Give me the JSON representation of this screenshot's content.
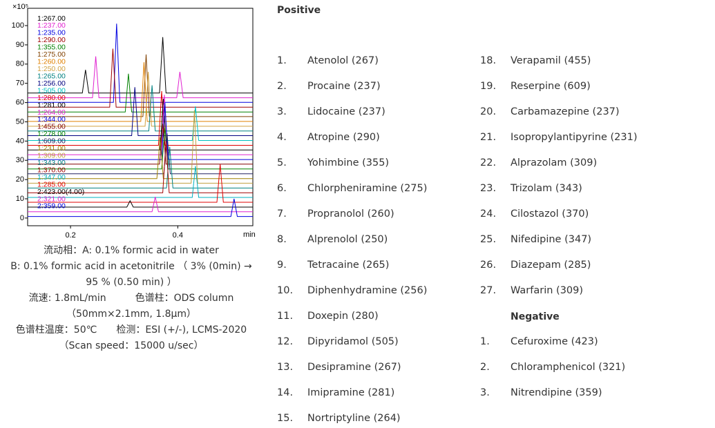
{
  "chart_data": {
    "type": "line",
    "ylabel": "×10⁵",
    "xlabel": "min",
    "xlim": [
      0.12,
      0.54
    ],
    "ylim": [
      -4,
      109
    ],
    "xticks": [
      0.2,
      0.4
    ],
    "yticks": [
      0,
      10,
      20,
      30,
      40,
      50,
      60,
      70,
      80,
      90,
      100
    ],
    "series": [
      {
        "name": "1:267.00",
        "color": "#000000",
        "x": [
          0.12,
          0.222,
          0.228,
          0.234,
          0.366,
          0.372,
          0.378,
          0.54
        ],
        "values": [
          65,
          65,
          77,
          65,
          65,
          94,
          65,
          65
        ]
      },
      {
        "name": "1:237.00",
        "color": "#e020d0",
        "x": [
          0.12,
          0.241,
          0.247,
          0.253,
          0.398,
          0.404,
          0.41,
          0.54
        ],
        "values": [
          62.5,
          62.5,
          84,
          62.5,
          62.5,
          76,
          62.5,
          62.5
        ]
      },
      {
        "name": "1:235.00",
        "color": "#0000e0",
        "x": [
          0.12,
          0.28,
          0.286,
          0.292,
          0.54
        ],
        "values": [
          60.1,
          60.1,
          101,
          60.1,
          60.1
        ]
      },
      {
        "name": "1:290.00",
        "color": "#a00000",
        "x": [
          0.12,
          0.273,
          0.279,
          0.285,
          0.54
        ],
        "values": [
          57.6,
          57.6,
          88,
          57.6,
          57.6
        ]
      },
      {
        "name": "1:355.00",
        "color": "#008000",
        "x": [
          0.12,
          0.302,
          0.308,
          0.314,
          0.54
        ],
        "values": [
          55.1,
          55.1,
          75,
          55.1,
          55.1
        ]
      },
      {
        "name": "1:275.00",
        "color": "#804000",
        "x": [
          0.12,
          0.335,
          0.341,
          0.347,
          0.54
        ],
        "values": [
          52.7,
          52.7,
          85,
          52.7,
          52.7
        ]
      },
      {
        "name": "1:260.00",
        "color": "#e08000",
        "x": [
          0.12,
          0.331,
          0.337,
          0.343,
          0.54
        ],
        "values": [
          50.2,
          50.2,
          81,
          50.2,
          50.2
        ]
      },
      {
        "name": "1:250.00",
        "color": "#d0a040",
        "x": [
          0.12,
          0.339,
          0.345,
          0.351,
          0.54
        ],
        "values": [
          47.7,
          47.7,
          76,
          47.7,
          47.7
        ]
      },
      {
        "name": "1:265.00",
        "color": "#008080",
        "x": [
          0.12,
          0.346,
          0.352,
          0.358,
          0.54
        ],
        "values": [
          45.2,
          45.2,
          69,
          45.2,
          45.2
        ]
      },
      {
        "name": "1:256.00",
        "color": "#000080",
        "x": [
          0.12,
          0.314,
          0.32,
          0.326,
          0.54
        ],
        "values": [
          42.8,
          42.8,
          68,
          42.8,
          42.8
        ]
      },
      {
        "name": "1:505.00",
        "color": "#00c0c0",
        "x": [
          0.12,
          0.427,
          0.433,
          0.439,
          0.54
        ],
        "values": [
          40.3,
          40.3,
          58,
          40.3,
          40.3
        ]
      },
      {
        "name": "1:280.00",
        "color": "#e00000",
        "x": [
          0.12,
          0.364,
          0.37,
          0.376,
          0.54
        ],
        "values": [
          37.8,
          37.8,
          66,
          37.8,
          37.8
        ]
      },
      {
        "name": "1:281.00",
        "color": "#000000",
        "x": [
          0.12,
          0.367,
          0.373,
          0.379,
          0.54
        ],
        "values": [
          35.4,
          35.4,
          62,
          35.4,
          35.4
        ]
      },
      {
        "name": "1:264.00",
        "color": "#e020d0",
        "x": [
          0.12,
          0.369,
          0.375,
          0.381,
          0.54
        ],
        "values": [
          32.9,
          32.9,
          64,
          32.9,
          32.9
        ]
      },
      {
        "name": "1:344.00",
        "color": "#0000e0",
        "x": [
          0.12,
          0.37,
          0.376,
          0.382,
          0.54
        ],
        "values": [
          30.4,
          30.4,
          60,
          30.4,
          30.4
        ]
      },
      {
        "name": "1:455.00",
        "color": "#800000",
        "x": [
          0.12,
          0.366,
          0.372,
          0.378,
          0.54
        ],
        "values": [
          28,
          28,
          49,
          28,
          28
        ]
      },
      {
        "name": "1:278.00",
        "color": "#008000",
        "x": [
          0.12,
          0.37,
          0.376,
          0.382,
          0.54
        ],
        "values": [
          25.5,
          25.5,
          47,
          25.5,
          25.5
        ]
      },
      {
        "name": "1:609.00",
        "color": "#202060",
        "x": [
          0.12,
          0.374,
          0.38,
          0.386,
          0.54
        ],
        "values": [
          23,
          23,
          44,
          23,
          23
        ]
      },
      {
        "name": "1:231.00",
        "color": "#a08000",
        "x": [
          0.12,
          0.361,
          0.367,
          0.373,
          0.54
        ],
        "values": [
          20.5,
          20.5,
          42,
          20.5,
          20.5
        ]
      },
      {
        "name": "1:309.00",
        "color": "#c0a040",
        "x": [
          0.12,
          0.425,
          0.431,
          0.437,
          0.54
        ],
        "values": [
          18.1,
          18.1,
          56,
          18.1,
          18.1
        ]
      },
      {
        "name": "1:343.00",
        "color": "#008080",
        "x": [
          0.12,
          0.379,
          0.385,
          0.391,
          0.54
        ],
        "values": [
          15.6,
          15.6,
          37,
          15.6,
          15.6
        ]
      },
      {
        "name": "1:370.00",
        "color": "#a00000",
        "x": [
          0.12,
          0.372,
          0.378,
          0.384,
          0.54
        ],
        "values": [
          13.1,
          13.1,
          40,
          13.1,
          13.1
        ]
      },
      {
        "name": "1:347.00",
        "color": "#00b0c0",
        "x": [
          0.12,
          0.427,
          0.433,
          0.439,
          0.54
        ],
        "values": [
          10.7,
          10.7,
          27,
          10.7,
          10.7
        ]
      },
      {
        "name": "1:285.00",
        "color": "#e00000",
        "x": [
          0.12,
          0.473,
          0.479,
          0.485,
          0.54
        ],
        "values": [
          8.2,
          8.2,
          28,
          8.2,
          8.2
        ]
      },
      {
        "name": "2:423.00(4.00)",
        "color": "#000000",
        "x": [
          0.12,
          0.305,
          0.311,
          0.317,
          0.54
        ],
        "values": [
          5.7,
          5.7,
          9,
          5.7,
          5.7
        ]
      },
      {
        "name": "2:321.00",
        "color": "#e020d0",
        "x": [
          0.12,
          0.352,
          0.358,
          0.364,
          0.54
        ],
        "values": [
          3.3,
          3.3,
          11,
          3.3,
          3.3
        ]
      },
      {
        "name": "2:359.00",
        "color": "#0000e0",
        "x": [
          0.12,
          0.499,
          0.505,
          0.511,
          0.54
        ],
        "values": [
          0.8,
          0.8,
          10,
          0.8,
          0.8
        ]
      }
    ]
  },
  "conditions": [
    "流动相：A: 0.1% formic acid in water",
    "B: 0.1% formic acid in acetonitrile （ 3% (0min) → 95 % (0.50 min) ）",
    "流速: 1.8mL/min　　　色谱柱：ODS column （50mm×2.1mm, 1.8μm）",
    "色谱柱温度：50℃　　检测：ESI (+/-), LCMS-2020 （Scan speed：15000 u/sec）"
  ],
  "positive": {
    "title": "Positive",
    "items": [
      {
        "number": "1.",
        "name": "Atenolol (267)"
      },
      {
        "number": "2.",
        "name": "Procaine (237)"
      },
      {
        "number": "3.",
        "name": "Lidocaine (237)"
      },
      {
        "number": "4.",
        "name": "Atropine (290)"
      },
      {
        "number": "5.",
        "name": "Yohimbine (355)"
      },
      {
        "number": "6.",
        "name": "Chlorpheniramine (275)"
      },
      {
        "number": "7.",
        "name": "Propranolol (260)"
      },
      {
        "number": "8.",
        "name": "Alprenolol (250)"
      },
      {
        "number": "9.",
        "name": "Tetracaine (265)"
      },
      {
        "number": "10.",
        "name": "Diphenhydramine (256)"
      },
      {
        "number": "11.",
        "name": "Doxepin (280)"
      },
      {
        "number": "12.",
        "name": "Dipyridamol (505)"
      },
      {
        "number": "13.",
        "name": "Desipramine (267)"
      },
      {
        "number": "14.",
        "name": "Imipramine (281)"
      },
      {
        "number": "15.",
        "name": "Nortriptyline (264)"
      },
      {
        "number": "18.",
        "name": "Verapamil (455)"
      },
      {
        "number": "19.",
        "name": "Reserpine (609)"
      },
      {
        "number": "20.",
        "name": "Carbamazepine (237)"
      },
      {
        "number": "21.",
        "name": "Isopropylantipyrine (231)"
      },
      {
        "number": "22.",
        "name": "Alprazolam (309)"
      },
      {
        "number": "23.",
        "name": "Trizolam (343)"
      },
      {
        "number": "24.",
        "name": "Cilostazol (370)"
      },
      {
        "number": "25.",
        "name": "Nifedipine (347)"
      },
      {
        "number": "26.",
        "name": "Diazepam (285)"
      },
      {
        "number": "27.",
        "name": "Warfarin (309)"
      }
    ]
  },
  "negative": {
    "title": "Negative",
    "items": [
      {
        "number": "1.",
        "name": "Cefuroxime (423)"
      },
      {
        "number": "2.",
        "name": "Chloramphenicol (321)"
      },
      {
        "number": "3.",
        "name": "Nitrendipine (359)"
      }
    ]
  }
}
